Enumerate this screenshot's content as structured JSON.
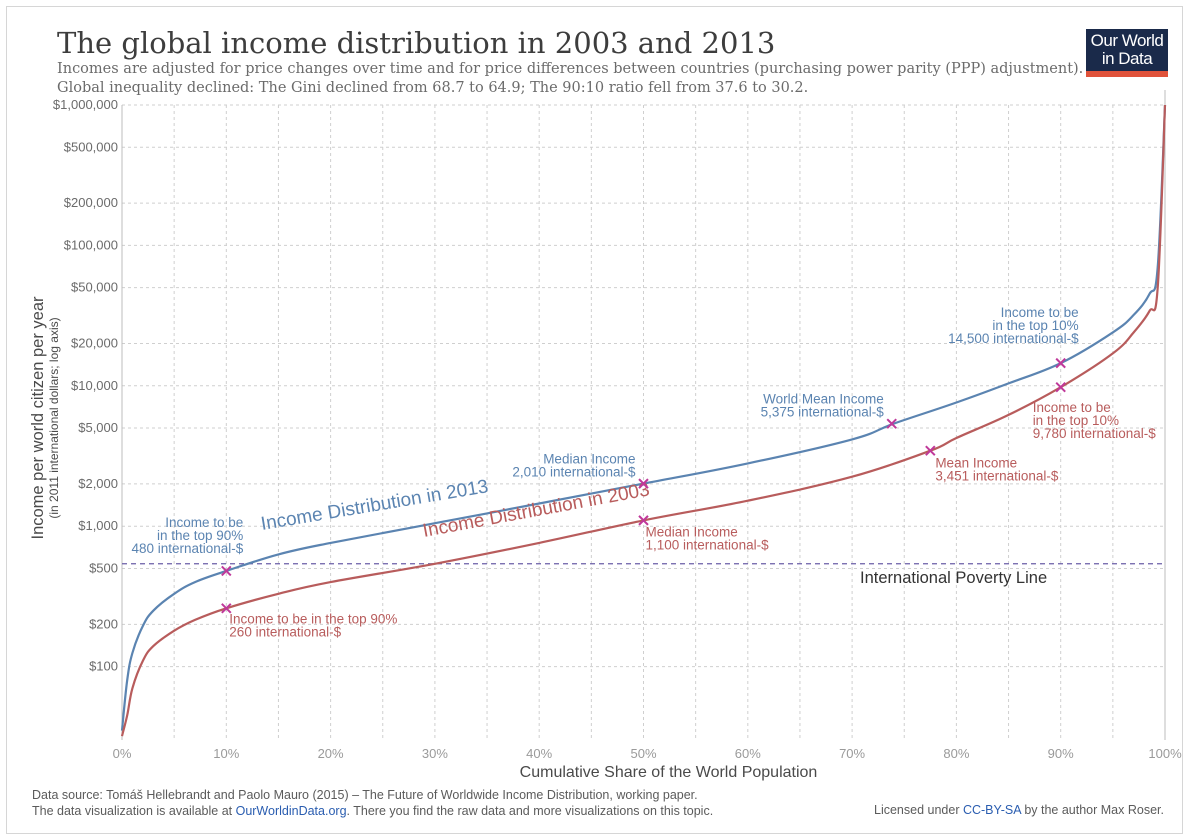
{
  "header": {
    "title": "The global income distribution in 2003 and 2013",
    "subtitle_line1": "Incomes are adjusted for price changes over time and for price differences between countries (purchasing power parity (PPP) adjustment).",
    "subtitle_line2": "Global inequality declined: The Gini declined from 68.7 to 64.9; The 90:10 ratio fell from 37.6 to 30.2."
  },
  "logo": {
    "line1": "Our World",
    "line2": "in Data"
  },
  "footer": {
    "source": "Data source: Tomáš Hellebrandt and Paolo Mauro (2015) – The Future of Worldwide Income Distribution, working paper.",
    "viz_prefix": "The data visualization is available at ",
    "viz_link": "OurWorldinData.org",
    "viz_suffix": ". There you find the raw data and more visualizations on this topic.",
    "license_prefix": "Licensed under ",
    "license_link": "CC-BY-SA",
    "license_suffix": " by the author Max Roser."
  },
  "colors": {
    "series_2013": "#5b84b1",
    "series_2003": "#b85c5c",
    "marker": "#c0399a",
    "poverty_line": "#6b5fa8",
    "grid": "#cfcfcf"
  },
  "chart_data": {
    "type": "line",
    "y_scale": "log",
    "xlabel": "Cumulative Share of the World Population",
    "ylabel": "Income per world citizen per year",
    "ylabel_sub": "(in 2011 international dollars; log axis)",
    "xlim": [
      0,
      100
    ],
    "ylim": [
      30,
      1000000
    ],
    "grid": true,
    "x_ticks": [
      0,
      10,
      20,
      30,
      40,
      50,
      60,
      70,
      80,
      90,
      100
    ],
    "x_tick_labels": [
      "0%",
      "10%",
      "20%",
      "30%",
      "40%",
      "50%",
      "60%",
      "70%",
      "80%",
      "90%",
      "100%"
    ],
    "y_ticks": [
      100,
      200,
      500,
      1000,
      2000,
      5000,
      10000,
      20000,
      50000,
      100000,
      200000,
      500000,
      1000000
    ],
    "y_tick_labels": [
      "$100",
      "$200",
      "$500",
      "$1,000",
      "$2,000",
      "$5,000",
      "$10,000",
      "$20,000",
      "$50,000",
      "$100,000",
      "$200,000",
      "$500,000",
      "$1,000,000"
    ],
    "series": [
      {
        "name": "Income Distribution in 2013",
        "x": [
          0,
          0.5,
          1,
          2,
          3,
          5,
          7,
          10,
          15,
          20,
          30,
          40,
          50,
          60,
          70,
          74,
          80,
          85,
          90,
          95,
          97,
          98.5,
          99.3,
          100
        ],
        "y": [
          35,
          80,
          125,
          195,
          250,
          330,
          400,
          480,
          630,
          760,
          1050,
          1450,
          2010,
          2800,
          4150,
          5375,
          7600,
          10400,
          14500,
          24000,
          32000,
          45000,
          70000,
          1000000
        ]
      },
      {
        "name": "Income Distribution in 2003",
        "x": [
          0,
          0.5,
          1,
          2,
          3,
          5,
          7,
          10,
          15,
          20,
          30,
          40,
          50,
          60,
          70,
          77.5,
          80,
          85,
          90,
          95,
          97,
          98.5,
          99.3,
          100
        ],
        "y": [
          32,
          45,
          70,
          110,
          140,
          180,
          215,
          260,
          330,
          400,
          540,
          760,
          1100,
          1520,
          2250,
          3451,
          4250,
          6200,
          9780,
          17000,
          24000,
          34000,
          50000,
          1000000
        ]
      }
    ],
    "poverty_line": {
      "label": "International Poverty Line",
      "y": 540
    },
    "series_labels": [
      {
        "text": "Income Distribution in 2013",
        "series": 0
      },
      {
        "text": "Income Distribution in 2003",
        "series": 1
      }
    ],
    "annotations": [
      {
        "series": 0,
        "x": 10,
        "y": 480,
        "lines": [
          "Income to be",
          "in the top 90%",
          "480 international-$"
        ]
      },
      {
        "series": 0,
        "x": 50,
        "y": 2010,
        "lines": [
          "Median Income",
          "2,010 international-$"
        ]
      },
      {
        "series": 0,
        "x": 73.8,
        "y": 5375,
        "lines": [
          "World Mean Income",
          "5,375 international-$"
        ]
      },
      {
        "series": 0,
        "x": 90,
        "y": 14500,
        "lines": [
          "Income to be",
          "in the top 10%",
          "14,500 international-$"
        ]
      },
      {
        "series": 1,
        "x": 10,
        "y": 260,
        "lines": [
          "Income to be in the top 90%",
          "260 international-$"
        ]
      },
      {
        "series": 1,
        "x": 50,
        "y": 1100,
        "lines": [
          "Median Income",
          "1,100 international-$"
        ]
      },
      {
        "series": 1,
        "x": 77.5,
        "y": 3451,
        "lines": [
          "Mean Income",
          "3,451 international-$"
        ]
      },
      {
        "series": 1,
        "x": 90,
        "y": 9780,
        "lines": [
          "Income to be",
          "in the top 10%",
          "9,780 international-$"
        ]
      }
    ]
  }
}
